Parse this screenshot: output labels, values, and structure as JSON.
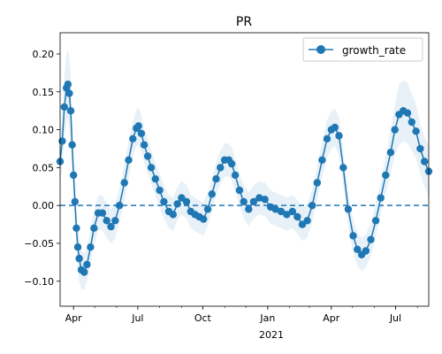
{
  "chart_data": {
    "type": "line",
    "title": "PR",
    "xlabel": "",
    "ylabel": "",
    "x_ticks": [
      {
        "date": "2020-04-01",
        "label": "Apr"
      },
      {
        "date": "2020-07-01",
        "label": "Jul"
      },
      {
        "date": "2020-10-01",
        "label": "Oct"
      },
      {
        "date": "2021-01-01",
        "label": "Jan"
      },
      {
        "date": "2021-04-01",
        "label": "Apr"
      },
      {
        "date": "2021-07-01",
        "label": "Jul"
      }
    ],
    "x_year_label": "2021",
    "xlim": [
      "2020-03-13",
      "2021-08-17"
    ],
    "ylim": [
      -0.133,
      0.228
    ],
    "y_ticks": [
      -0.1,
      -0.05,
      0.0,
      0.05,
      0.1,
      0.15,
      0.2
    ],
    "y_tick_labels": [
      "−0.10",
      "−0.05",
      "0.00",
      "0.05",
      "0.10",
      "0.15",
      "0.20"
    ],
    "reference_line": 0.0,
    "legend": {
      "entries": [
        "growth_rate"
      ],
      "position": "top-right"
    },
    "colors": {
      "line": "#1f77b4",
      "band": "#1f77b4",
      "band_opacity": 0.1
    },
    "series": [
      {
        "name": "growth_rate",
        "x": [
          "2020-03-13",
          "2020-03-16",
          "2020-03-19",
          "2020-03-22",
          "2020-03-24",
          "2020-03-26",
          "2020-03-28",
          "2020-03-30",
          "2020-04-01",
          "2020-04-03",
          "2020-04-05",
          "2020-04-07",
          "2020-04-09",
          "2020-04-12",
          "2020-04-16",
          "2020-04-20",
          "2020-04-25",
          "2020-04-30",
          "2020-05-06",
          "2020-05-12",
          "2020-05-18",
          "2020-05-24",
          "2020-05-30",
          "2020-06-05",
          "2020-06-12",
          "2020-06-18",
          "2020-06-24",
          "2020-06-29",
          "2020-07-02",
          "2020-07-06",
          "2020-07-10",
          "2020-07-15",
          "2020-07-20",
          "2020-07-26",
          "2020-08-01",
          "2020-08-07",
          "2020-08-14",
          "2020-08-20",
          "2020-08-26",
          "2020-09-01",
          "2020-09-08",
          "2020-09-14",
          "2020-09-20",
          "2020-09-26",
          "2020-10-02",
          "2020-10-08",
          "2020-10-14",
          "2020-10-20",
          "2020-10-26",
          "2020-11-01",
          "2020-11-07",
          "2020-11-11",
          "2020-11-16",
          "2020-11-22",
          "2020-11-28",
          "2020-12-05",
          "2020-12-12",
          "2020-12-20",
          "2020-12-28",
          "2021-01-05",
          "2021-01-12",
          "2021-01-20",
          "2021-01-28",
          "2021-02-05",
          "2021-02-12",
          "2021-02-19",
          "2021-02-26",
          "2021-03-05",
          "2021-03-12",
          "2021-03-19",
          "2021-03-26",
          "2021-04-01",
          "2021-04-06",
          "2021-04-12",
          "2021-04-18",
          "2021-04-25",
          "2021-05-02",
          "2021-05-08",
          "2021-05-14",
          "2021-05-20",
          "2021-05-27",
          "2021-06-03",
          "2021-06-10",
          "2021-06-17",
          "2021-06-24",
          "2021-06-30",
          "2021-07-06",
          "2021-07-12",
          "2021-07-18",
          "2021-07-24",
          "2021-07-30",
          "2021-08-05",
          "2021-08-11",
          "2021-08-17"
        ],
        "y": [
          0.058,
          0.085,
          0.13,
          0.155,
          0.16,
          0.148,
          0.125,
          0.08,
          0.04,
          0.005,
          -0.03,
          -0.055,
          -0.07,
          -0.085,
          -0.088,
          -0.078,
          -0.055,
          -0.03,
          -0.01,
          -0.01,
          -0.02,
          -0.028,
          -0.02,
          0.0,
          0.03,
          0.06,
          0.088,
          0.102,
          0.105,
          0.095,
          0.08,
          0.065,
          0.05,
          0.035,
          0.02,
          0.005,
          -0.008,
          -0.012,
          0.002,
          0.01,
          0.005,
          -0.008,
          -0.012,
          -0.015,
          -0.018,
          -0.005,
          0.015,
          0.035,
          0.05,
          0.06,
          0.06,
          0.055,
          0.04,
          0.02,
          0.005,
          -0.005,
          0.005,
          0.01,
          0.008,
          -0.002,
          -0.005,
          -0.008,
          -0.012,
          -0.008,
          -0.015,
          -0.025,
          -0.02,
          0.0,
          0.03,
          0.06,
          0.088,
          0.1,
          0.103,
          0.092,
          0.05,
          -0.005,
          -0.04,
          -0.058,
          -0.065,
          -0.06,
          -0.045,
          -0.02,
          0.01,
          0.04,
          0.07,
          0.1,
          0.12,
          0.125,
          0.122,
          0.11,
          0.098,
          0.075,
          0.058,
          0.045
        ],
        "band_lower": [
          0.03,
          0.05,
          0.09,
          0.11,
          0.115,
          0.1,
          0.08,
          0.045,
          0.01,
          -0.025,
          -0.06,
          -0.085,
          -0.1,
          -0.11,
          -0.112,
          -0.1,
          -0.078,
          -0.052,
          -0.033,
          -0.033,
          -0.043,
          -0.05,
          -0.043,
          -0.022,
          0.005,
          0.035,
          0.065,
          0.078,
          0.08,
          0.07,
          0.057,
          0.042,
          0.028,
          0.013,
          -0.002,
          -0.017,
          -0.03,
          -0.034,
          -0.02,
          -0.012,
          -0.017,
          -0.03,
          -0.034,
          -0.037,
          -0.04,
          -0.027,
          -0.007,
          0.013,
          0.028,
          0.038,
          0.038,
          0.033,
          0.018,
          -0.002,
          -0.017,
          -0.027,
          -0.017,
          -0.012,
          -0.014,
          -0.024,
          -0.027,
          -0.03,
          -0.034,
          -0.03,
          -0.037,
          -0.047,
          -0.042,
          -0.022,
          0.008,
          0.036,
          0.063,
          0.075,
          0.078,
          0.067,
          0.027,
          -0.027,
          -0.062,
          -0.08,
          -0.087,
          -0.082,
          -0.067,
          -0.042,
          -0.012,
          0.015,
          0.04,
          0.068,
          0.08,
          0.085,
          0.082,
          0.072,
          0.062,
          0.042,
          0.025,
          0.012
        ],
        "band_upper": [
          0.086,
          0.12,
          0.17,
          0.2,
          0.205,
          0.196,
          0.17,
          0.115,
          0.07,
          0.035,
          0.0,
          -0.025,
          -0.04,
          -0.06,
          -0.064,
          -0.056,
          -0.032,
          -0.008,
          0.013,
          0.013,
          0.003,
          -0.006,
          0.003,
          0.022,
          0.055,
          0.085,
          0.111,
          0.126,
          0.13,
          0.12,
          0.103,
          0.088,
          0.072,
          0.057,
          0.042,
          0.027,
          0.014,
          0.01,
          0.024,
          0.032,
          0.027,
          0.014,
          0.01,
          0.007,
          0.004,
          0.017,
          0.037,
          0.057,
          0.072,
          0.082,
          0.082,
          0.077,
          0.062,
          0.042,
          0.027,
          0.017,
          0.027,
          0.032,
          0.03,
          0.02,
          0.017,
          0.014,
          0.01,
          0.014,
          0.007,
          -0.003,
          0.002,
          0.022,
          0.052,
          0.084,
          0.113,
          0.125,
          0.128,
          0.117,
          0.073,
          0.017,
          -0.018,
          -0.036,
          -0.043,
          -0.038,
          -0.023,
          0.002,
          0.032,
          0.065,
          0.1,
          0.132,
          0.16,
          0.165,
          0.162,
          0.148,
          0.134,
          0.108,
          0.091,
          0.078
        ]
      }
    ]
  }
}
